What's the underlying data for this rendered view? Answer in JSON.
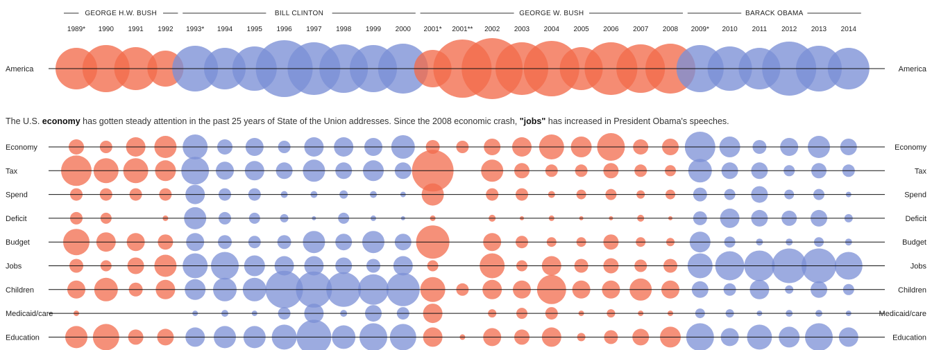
{
  "chart_data": {
    "type": "bubble-grid",
    "presidents": [
      {
        "name": "GEORGE H.W. BUSH",
        "party_color": "#f26b4c",
        "first_col": 0,
        "last_col": 3
      },
      {
        "name": "BILL CLINTON",
        "party_color": "#7b8fd6",
        "first_col": 4,
        "last_col": 11
      },
      {
        "name": "GEORGE W. BUSH",
        "party_color": "#f26b4c",
        "first_col": 12,
        "last_col": 20
      },
      {
        "name": "BARACK OBAMA",
        "party_color": "#7b8fd6",
        "first_col": 21,
        "last_col": 26
      }
    ],
    "years": [
      "1989*",
      "1990",
      "1991",
      "1992",
      "1993*",
      "1994",
      "1995",
      "1996",
      "1997",
      "1998",
      "1999",
      "2000",
      "2001*",
      "2001**",
      "2002",
      "2003",
      "2004",
      "2005",
      "2006",
      "2007",
      "2008",
      "2009*",
      "2010",
      "2011",
      "2012",
      "2013",
      "2014"
    ],
    "colors": {
      "republican": "#f26b4c",
      "democrat": "#7b8fd6",
      "line": "#111111"
    },
    "top_row": {
      "label_left": "America",
      "label_right": "America",
      "values": [
        30,
        34,
        31,
        26,
        33,
        30,
        32,
        41,
        38,
        35,
        34,
        36,
        27,
        42,
        44,
        38,
        40,
        31,
        38,
        35,
        36,
        34,
        32,
        30,
        39,
        33,
        30
      ]
    },
    "caption": {
      "part1": "The U.S. ",
      "bold1": "economy",
      "part2": " has gotten steady attention in the past 25 years of State of the Union addresses. Since the 2008 economic crash, ",
      "bold2": "\"jobs\"",
      "part3": " has increased in President Obama's speeches."
    },
    "rows": [
      {
        "label": "Economy",
        "values": [
          11,
          9,
          14,
          16,
          18,
          11,
          13,
          9,
          14,
          14,
          13,
          17,
          10,
          9,
          12,
          14,
          18,
          15,
          20,
          11,
          12,
          22,
          15,
          10,
          13,
          16,
          12
        ]
      },
      {
        "label": "Tax",
        "values": [
          22,
          18,
          18,
          15,
          20,
          13,
          14,
          12,
          16,
          12,
          15,
          12,
          30,
          0,
          16,
          11,
          9,
          9,
          11,
          9,
          8,
          17,
          12,
          12,
          8,
          11,
          9
        ]
      },
      {
        "label": "Spend",
        "values": [
          9,
          9,
          9,
          9,
          14,
          9,
          9,
          5,
          5,
          6,
          5,
          4,
          16,
          0,
          9,
          9,
          5,
          7,
          8,
          6,
          7,
          10,
          8,
          12,
          7,
          8,
          4
        ]
      },
      {
        "label": "Deficit",
        "values": [
          9,
          8,
          0,
          4,
          16,
          9,
          8,
          6,
          3,
          8,
          4,
          3,
          4,
          0,
          5,
          3,
          4,
          3,
          3,
          5,
          3,
          10,
          14,
          12,
          11,
          12,
          6
        ]
      },
      {
        "label": "Budget",
        "values": [
          19,
          14,
          13,
          11,
          13,
          10,
          9,
          10,
          16,
          12,
          16,
          12,
          24,
          0,
          13,
          9,
          7,
          7,
          11,
          7,
          6,
          15,
          8,
          5,
          5,
          7,
          5
        ]
      },
      {
        "label": "Jobs",
        "values": [
          10,
          8,
          12,
          16,
          18,
          20,
          15,
          14,
          14,
          12,
          10,
          14,
          8,
          0,
          18,
          8,
          14,
          10,
          11,
          9,
          10,
          18,
          21,
          22,
          25,
          25,
          20
        ]
      },
      {
        "label": "Children",
        "values": [
          13,
          17,
          10,
          14,
          15,
          17,
          17,
          27,
          26,
          25,
          22,
          24,
          18,
          9,
          14,
          13,
          21,
          13,
          13,
          16,
          13,
          12,
          9,
          14,
          6,
          12,
          8
        ]
      },
      {
        "label": "Medicaid/care",
        "values": [
          4,
          0,
          0,
          0,
          4,
          5,
          4,
          9,
          14,
          5,
          12,
          9,
          14,
          0,
          6,
          8,
          9,
          4,
          6,
          4,
          4,
          7,
          6,
          4,
          5,
          5,
          4
        ]
      },
      {
        "label": "Education",
        "values": [
          16,
          19,
          11,
          12,
          14,
          16,
          16,
          18,
          25,
          17,
          20,
          19,
          14,
          4,
          13,
          11,
          14,
          6,
          10,
          12,
          15,
          20,
          13,
          18,
          15,
          20,
          14
        ]
      }
    ]
  }
}
